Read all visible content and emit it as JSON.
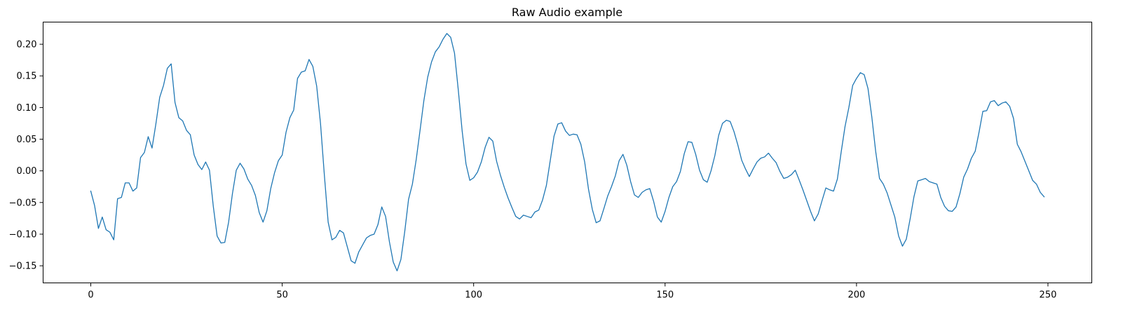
{
  "chart_data": {
    "type": "line",
    "title": "Raw Audio example",
    "xlabel": "",
    "ylabel": "",
    "xlim": [
      -12.45,
      261.45
    ],
    "ylim": [
      -0.177,
      0.235
    ],
    "xticks": [
      0,
      50,
      100,
      150,
      200,
      250
    ],
    "xtick_labels": [
      "0",
      "50",
      "100",
      "150",
      "200",
      "250"
    ],
    "yticks": [
      -0.15,
      -0.1,
      -0.05,
      0.0,
      0.05,
      0.1,
      0.15,
      0.2
    ],
    "ytick_labels": [
      "−0.15",
      "−0.10",
      "−0.05",
      "0.00",
      "0.05",
      "0.10",
      "0.15",
      "0.20"
    ],
    "grid": false,
    "legend": "none",
    "line_color": "#1f77b4",
    "series": [
      {
        "values": [
          -0.032,
          -0.055,
          -0.091,
          -0.073,
          -0.093,
          -0.097,
          -0.109,
          -0.044,
          -0.042,
          -0.019,
          -0.019,
          -0.032,
          -0.027,
          0.021,
          0.029,
          0.054,
          0.036,
          0.074,
          0.116,
          0.135,
          0.162,
          0.169,
          0.108,
          0.084,
          0.079,
          0.064,
          0.057,
          0.025,
          0.01,
          0.002,
          0.014,
          0.001,
          -0.056,
          -0.103,
          -0.114,
          -0.113,
          -0.081,
          -0.036,
          0.001,
          0.012,
          0.003,
          -0.013,
          -0.023,
          -0.039,
          -0.066,
          -0.081,
          -0.063,
          -0.028,
          -0.003,
          0.016,
          0.025,
          0.061,
          0.084,
          0.096,
          0.146,
          0.156,
          0.158,
          0.176,
          0.165,
          0.134,
          0.075,
          -0.006,
          -0.081,
          -0.109,
          -0.105,
          -0.094,
          -0.098,
          -0.12,
          -0.142,
          -0.146,
          -0.128,
          -0.117,
          -0.106,
          -0.102,
          -0.1,
          -0.085,
          -0.057,
          -0.072,
          -0.112,
          -0.144,
          -0.158,
          -0.14,
          -0.096,
          -0.045,
          -0.021,
          0.018,
          0.064,
          0.111,
          0.148,
          0.172,
          0.188,
          0.196,
          0.208,
          0.217,
          0.211,
          0.186,
          0.127,
          0.063,
          0.011,
          -0.015,
          -0.011,
          -0.002,
          0.014,
          0.037,
          0.053,
          0.047,
          0.015,
          -0.007,
          -0.026,
          -0.043,
          -0.058,
          -0.072,
          -0.076,
          -0.07,
          -0.072,
          -0.074,
          -0.065,
          -0.062,
          -0.046,
          -0.023,
          0.016,
          0.055,
          0.074,
          0.076,
          0.063,
          0.056,
          0.058,
          0.057,
          0.042,
          0.014,
          -0.029,
          -0.061,
          -0.082,
          -0.079,
          -0.06,
          -0.04,
          -0.025,
          -0.008,
          0.016,
          0.026,
          0.009,
          -0.017,
          -0.038,
          -0.042,
          -0.034,
          -0.03,
          -0.028,
          -0.048,
          -0.073,
          -0.081,
          -0.064,
          -0.042,
          -0.025,
          -0.017,
          -0.001,
          0.027,
          0.046,
          0.045,
          0.026,
          0.001,
          -0.014,
          -0.018,
          0.0,
          0.024,
          0.056,
          0.075,
          0.08,
          0.078,
          0.062,
          0.041,
          0.017,
          0.003,
          -0.009,
          0.003,
          0.014,
          0.02,
          0.022,
          0.028,
          0.02,
          0.013,
          -0.001,
          -0.012,
          -0.01,
          -0.006,
          0.001,
          -0.014,
          -0.03,
          -0.047,
          -0.064,
          -0.079,
          -0.068,
          -0.047,
          -0.027,
          -0.03,
          -0.032,
          -0.013,
          0.03,
          0.07,
          0.1,
          0.135,
          0.146,
          0.155,
          0.152,
          0.13,
          0.085,
          0.031,
          -0.012,
          -0.021,
          -0.035,
          -0.054,
          -0.073,
          -0.103,
          -0.119,
          -0.108,
          -0.076,
          -0.041,
          -0.016,
          -0.014,
          -0.012,
          -0.017,
          -0.019,
          -0.021,
          -0.042,
          -0.056,
          -0.063,
          -0.064,
          -0.057,
          -0.036,
          -0.01,
          0.003,
          0.02,
          0.031,
          0.061,
          0.094,
          0.095,
          0.109,
          0.111,
          0.103,
          0.107,
          0.109,
          0.102,
          0.083,
          0.042,
          0.03,
          0.015,
          0.0,
          -0.015,
          -0.021,
          -0.034,
          -0.041
        ]
      }
    ]
  }
}
